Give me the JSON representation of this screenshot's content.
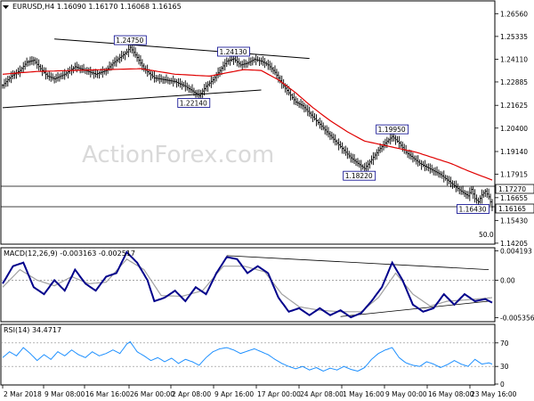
{
  "header": {
    "symbol_info": "EURUSD,H4  1.16090 1.16170 1.16068 1.16165"
  },
  "watermark": "ActionForex.com",
  "macd_label": "MACD(12,26,9) -0.003163 -0.002517",
  "rsi_label": "RSI(14) 34.4717",
  "price_axis_labels": [
    "1.26560",
    "1.25335",
    "1.24110",
    "1.22885",
    "1.21625",
    "1.20400",
    "1.19140",
    "1.17915",
    "1.16655",
    "1.15430",
    "1.14205"
  ],
  "price_tag_current": "1.16165",
  "price_tag_level": "1.17270",
  "scale_note": "50.0",
  "macd_axis_labels": [
    "0.004193",
    "0.00",
    "-0.005356"
  ],
  "rsi_axis_labels": [
    "70",
    "30",
    "0"
  ],
  "x_axis_labels": [
    "2 Mar 2018",
    "9 Mar 08:00",
    "16 Mar 16:00",
    "26 Mar 00:00",
    "2 Apr 08:00",
    "9 Apr 16:00",
    "17 Apr 00:00",
    "24 Apr 08:00",
    "1 May 16:00",
    "9 May 00:00",
    "16 May 08:00",
    "23 May 16:00"
  ],
  "annotations": [
    "1.24750",
    "1.24130",
    "1.22140",
    "1.19950",
    "1.18220",
    "1.16430"
  ],
  "colors": {
    "candles": "#000000",
    "moving_average": "#e00000",
    "macd_line": "#00008b",
    "signal_line": "#a0a0a0",
    "rsi": "#1e90ff",
    "trendline": "#000000"
  },
  "chart_data": [
    {
      "type": "candlestick",
      "title": "EURUSD,H4",
      "ylim": [
        1.142,
        1.272
      ],
      "x_ticks": [
        "2 Mar 2018",
        "9 Mar 08:00",
        "16 Mar 16:00",
        "26 Mar 00:00",
        "2 Apr 08:00",
        "9 Apr 16:00",
        "17 Apr 00:00",
        "24 Apr 08:00",
        "1 May 16:00",
        "9 May 00:00",
        "16 May 08:00",
        "23 May 16:00"
      ],
      "price_path": [
        [
          0,
          1.227
        ],
        [
          5,
          1.232
        ],
        [
          10,
          1.235
        ],
        [
          14,
          1.2395
        ],
        [
          18,
          1.2405
        ],
        [
          22,
          1.236
        ],
        [
          26,
          1.232
        ],
        [
          30,
          1.2305
        ],
        [
          36,
          1.233
        ],
        [
          42,
          1.237
        ],
        [
          48,
          1.235
        ],
        [
          54,
          1.233
        ],
        [
          60,
          1.235
        ],
        [
          64,
          1.239
        ],
        [
          68,
          1.242
        ],
        [
          72,
          1.245
        ],
        [
          74,
          1.2475
        ],
        [
          78,
          1.242
        ],
        [
          82,
          1.236
        ],
        [
          88,
          1.231
        ],
        [
          94,
          1.23
        ],
        [
          100,
          1.229
        ],
        [
          106,
          1.2265
        ],
        [
          110,
          1.224
        ],
        [
          114,
          1.2214
        ],
        [
          118,
          1.2265
        ],
        [
          122,
          1.23
        ],
        [
          126,
          1.235
        ],
        [
          130,
          1.24
        ],
        [
          134,
          1.2413
        ],
        [
          138,
          1.238
        ],
        [
          142,
          1.239
        ],
        [
          146,
          1.241
        ],
        [
          150,
          1.24
        ],
        [
          154,
          1.238
        ],
        [
          158,
          1.234
        ],
        [
          162,
          1.228
        ],
        [
          166,
          1.223
        ],
        [
          170,
          1.218
        ],
        [
          174,
          1.216
        ],
        [
          178,
          1.212
        ],
        [
          182,
          1.208
        ],
        [
          186,
          1.204
        ],
        [
          190,
          1.2
        ],
        [
          194,
          1.196
        ],
        [
          198,
          1.192
        ],
        [
          202,
          1.188
        ],
        [
          206,
          1.185
        ],
        [
          210,
          1.1822
        ],
        [
          214,
          1.187
        ],
        [
          218,
          1.192
        ],
        [
          222,
          1.196
        ],
        [
          226,
          1.1995
        ],
        [
          230,
          1.196
        ],
        [
          234,
          1.191
        ],
        [
          238,
          1.188
        ],
        [
          242,
          1.185
        ],
        [
          246,
          1.183
        ],
        [
          250,
          1.181
        ],
        [
          254,
          1.179
        ],
        [
          258,
          1.176
        ],
        [
          262,
          1.173
        ],
        [
          266,
          1.17
        ],
        [
          270,
          1.1675
        ],
        [
          272,
          1.171
        ],
        [
          274,
          1.166
        ],
        [
          276,
          1.1643
        ],
        [
          278,
          1.168
        ],
        [
          280,
          1.17
        ],
        [
          282,
          1.167
        ],
        [
          284,
          1.1616
        ]
      ],
      "ma_path": [
        [
          0,
          1.233
        ],
        [
          20,
          1.2345
        ],
        [
          40,
          1.235
        ],
        [
          60,
          1.2355
        ],
        [
          80,
          1.236
        ],
        [
          100,
          1.233
        ],
        [
          120,
          1.232
        ],
        [
          140,
          1.2355
        ],
        [
          150,
          1.235
        ],
        [
          160,
          1.23
        ],
        [
          170,
          1.223
        ],
        [
          180,
          1.215
        ],
        [
          190,
          1.208
        ],
        [
          200,
          1.202
        ],
        [
          210,
          1.197
        ],
        [
          220,
          1.195
        ],
        [
          230,
          1.193
        ],
        [
          240,
          1.191
        ],
        [
          250,
          1.188
        ],
        [
          260,
          1.185
        ],
        [
          270,
          1.181
        ],
        [
          284,
          1.176
        ]
      ],
      "trendlines": [
        {
          "from": [
            30,
            1.252
          ],
          "to": [
            178,
            1.2415
          ]
        },
        {
          "from": [
            0,
            1.215
          ],
          "to": [
            150,
            1.2245
          ]
        }
      ],
      "horizontal_levels": [
        1.1727,
        1.16165
      ],
      "annotations": [
        {
          "text": "1.24750",
          "x": 74,
          "y": 1.2475
        },
        {
          "text": "1.24130",
          "x": 134,
          "y": 1.2413
        },
        {
          "text": "1.22140",
          "x": 114,
          "y": 1.2214
        },
        {
          "text": "1.19950",
          "x": 226,
          "y": 1.1995
        },
        {
          "text": "1.18220",
          "x": 210,
          "y": 1.1822
        },
        {
          "text": "1.16430",
          "x": 276,
          "y": 1.1643
        }
      ]
    },
    {
      "type": "line",
      "title": "MACD(12,26,9) -0.003163 -0.002517",
      "ylim": [
        -0.0058,
        0.0045
      ],
      "series": [
        {
          "name": "MACD",
          "values": [
            [
              0,
              -0.0005
            ],
            [
              6,
              0.002
            ],
            [
              12,
              0.0025
            ],
            [
              18,
              -0.001
            ],
            [
              24,
              -0.002
            ],
            [
              30,
              0.0
            ],
            [
              36,
              -0.0015
            ],
            [
              42,
              0.0015
            ],
            [
              48,
              -0.0005
            ],
            [
              54,
              -0.0015
            ],
            [
              60,
              0.0005
            ],
            [
              66,
              0.001
            ],
            [
              72,
              0.004
            ],
            [
              78,
              0.0025
            ],
            [
              84,
              0.0
            ],
            [
              88,
              -0.003
            ],
            [
              94,
              -0.0025
            ],
            [
              100,
              -0.0015
            ],
            [
              106,
              -0.003
            ],
            [
              112,
              -0.001
            ],
            [
              118,
              -0.002
            ],
            [
              124,
              0.001
            ],
            [
              130,
              0.0033
            ],
            [
              136,
              0.003
            ],
            [
              142,
              0.001
            ],
            [
              148,
              0.002
            ],
            [
              154,
              0.001
            ],
            [
              160,
              -0.0025
            ],
            [
              166,
              -0.0045
            ],
            [
              172,
              -0.004
            ],
            [
              178,
              -0.005
            ],
            [
              184,
              -0.004
            ],
            [
              190,
              -0.005
            ],
            [
              196,
              -0.0043
            ],
            [
              202,
              -0.0053
            ],
            [
              208,
              -0.0047
            ],
            [
              214,
              -0.003
            ],
            [
              220,
              -0.001
            ],
            [
              226,
              0.0025
            ],
            [
              232,
              0.0
            ],
            [
              238,
              -0.0035
            ],
            [
              244,
              -0.0045
            ],
            [
              250,
              -0.004
            ],
            [
              256,
              -0.002
            ],
            [
              262,
              -0.0035
            ],
            [
              268,
              -0.002
            ],
            [
              274,
              -0.003
            ],
            [
              280,
              -0.0027
            ],
            [
              284,
              -0.0032
            ]
          ]
        },
        {
          "name": "Signal",
          "values": [
            [
              0,
              -0.001
            ],
            [
              10,
              0.0015
            ],
            [
              20,
              0.0
            ],
            [
              30,
              -0.0008
            ],
            [
              40,
              0.0005
            ],
            [
              50,
              -0.0005
            ],
            [
              60,
              -0.0003
            ],
            [
              72,
              0.003
            ],
            [
              82,
              0.0015
            ],
            [
              92,
              -0.0022
            ],
            [
              104,
              -0.0023
            ],
            [
              116,
              -0.0015
            ],
            [
              128,
              0.002
            ],
            [
              140,
              0.002
            ],
            [
              152,
              0.0012
            ],
            [
              162,
              -0.002
            ],
            [
              172,
              -0.0038
            ],
            [
              184,
              -0.0043
            ],
            [
              196,
              -0.0045
            ],
            [
              208,
              -0.0045
            ],
            [
              218,
              -0.0025
            ],
            [
              228,
              0.001
            ],
            [
              238,
              -0.002
            ],
            [
              248,
              -0.0037
            ],
            [
              258,
              -0.003
            ],
            [
              270,
              -0.0028
            ],
            [
              284,
              -0.0025
            ]
          ]
        }
      ],
      "trendlines": [
        {
          "from": [
            130,
            0.0035
          ],
          "to": [
            282,
            0.0015
          ]
        },
        {
          "from": [
            196,
            -0.0052
          ],
          "to": [
            282,
            -0.003
          ]
        }
      ]
    },
    {
      "type": "line",
      "title": "RSI(14) 34.4717",
      "ylim": [
        0,
        100
      ],
      "series": [
        {
          "name": "RSI",
          "values": [
            [
              0,
              45
            ],
            [
              4,
              55
            ],
            [
              8,
              48
            ],
            [
              12,
              62
            ],
            [
              16,
              52
            ],
            [
              20,
              40
            ],
            [
              24,
              50
            ],
            [
              28,
              42
            ],
            [
              32,
              55
            ],
            [
              36,
              48
            ],
            [
              40,
              58
            ],
            [
              44,
              50
            ],
            [
              48,
              45
            ],
            [
              52,
              55
            ],
            [
              56,
              48
            ],
            [
              60,
              52
            ],
            [
              64,
              58
            ],
            [
              68,
              52
            ],
            [
              72,
              68
            ],
            [
              74,
              72
            ],
            [
              78,
              55
            ],
            [
              82,
              48
            ],
            [
              86,
              40
            ],
            [
              90,
              45
            ],
            [
              94,
              38
            ],
            [
              98,
              44
            ],
            [
              102,
              35
            ],
            [
              106,
              42
            ],
            [
              110,
              38
            ],
            [
              114,
              32
            ],
            [
              118,
              45
            ],
            [
              122,
              55
            ],
            [
              126,
              60
            ],
            [
              130,
              62
            ],
            [
              134,
              58
            ],
            [
              138,
              52
            ],
            [
              142,
              56
            ],
            [
              146,
              60
            ],
            [
              150,
              55
            ],
            [
              154,
              50
            ],
            [
              158,
              42
            ],
            [
              162,
              35
            ],
            [
              166,
              30
            ],
            [
              170,
              26
            ],
            [
              174,
              30
            ],
            [
              178,
              24
            ],
            [
              182,
              28
            ],
            [
              186,
              22
            ],
            [
              190,
              27
            ],
            [
              194,
              24
            ],
            [
              198,
              30
            ],
            [
              202,
              25
            ],
            [
              206,
              22
            ],
            [
              210,
              28
            ],
            [
              214,
              42
            ],
            [
              218,
              52
            ],
            [
              222,
              58
            ],
            [
              226,
              62
            ],
            [
              230,
              45
            ],
            [
              234,
              36
            ],
            [
              238,
              32
            ],
            [
              242,
              30
            ],
            [
              246,
              38
            ],
            [
              250,
              34
            ],
            [
              254,
              28
            ],
            [
              258,
              33
            ],
            [
              262,
              40
            ],
            [
              266,
              34
            ],
            [
              270,
              30
            ],
            [
              274,
              42
            ],
            [
              278,
              34
            ],
            [
              282,
              36
            ],
            [
              284,
              34
            ]
          ]
        }
      ],
      "levels": [
        70,
        30
      ]
    }
  ]
}
